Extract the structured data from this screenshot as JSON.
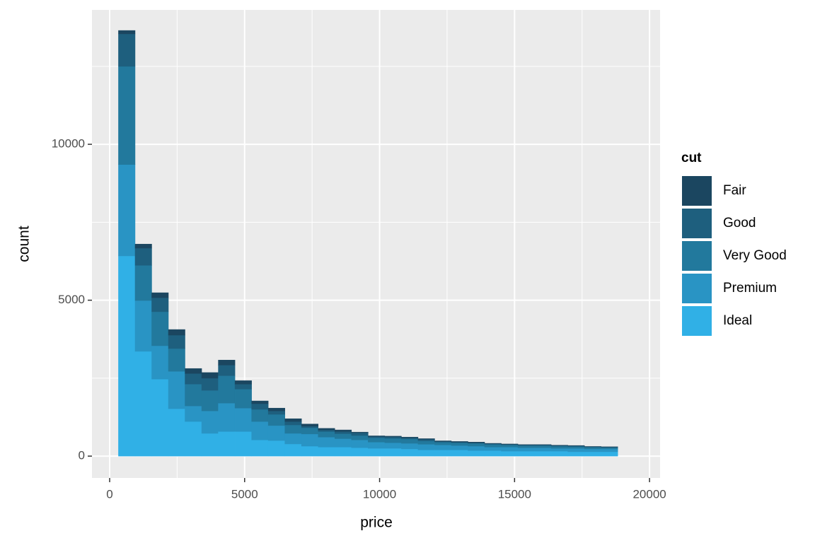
{
  "chart_data": {
    "type": "histogram",
    "stacked": true,
    "x_label": "price",
    "y_label": "count",
    "legend_title": "cut",
    "legend_position": "right",
    "grid": true,
    "bins": [
      326,
      943,
      1559,
      2176,
      2792,
      3409,
      4025,
      4642,
      5259,
      5875,
      6492,
      7108,
      7725,
      8341,
      8958,
      9575,
      10191,
      10808,
      11424,
      12041,
      12657,
      13274,
      13890,
      14507,
      15124,
      15740,
      16357,
      16973,
      17590,
      18206,
      18823
    ],
    "series": [
      {
        "name": "Fair",
        "color": "#1b4660",
        "values": [
          110,
          130,
          160,
          180,
          160,
          180,
          160,
          110,
          90,
          90,
          90,
          70,
          50,
          50,
          20,
          20,
          20,
          20,
          20,
          20,
          20,
          20,
          10,
          10,
          10,
          10,
          10,
          10,
          10,
          10
        ]
      },
      {
        "name": "Good",
        "color": "#1e5f7e",
        "values": [
          1040,
          550,
          450,
          430,
          340,
          390,
          340,
          160,
          180,
          110,
          110,
          50,
          50,
          70,
          90,
          40,
          50,
          40,
          50,
          20,
          20,
          20,
          20,
          20,
          20,
          20,
          20,
          20,
          10,
          10
        ]
      },
      {
        "name": "Very Good",
        "color": "#22799d",
        "values": [
          3150,
          1130,
          1090,
          730,
          700,
          660,
          880,
          610,
          390,
          360,
          270,
          200,
          180,
          160,
          140,
          140,
          140,
          140,
          110,
          90,
          90,
          90,
          90,
          70,
          70,
          70,
          70,
          60,
          60,
          50
        ]
      },
      {
        "name": "Premium",
        "color": "#2994c4",
        "values": [
          2930,
          1630,
          1070,
          1200,
          500,
          720,
          910,
          750,
          590,
          480,
          340,
          390,
          320,
          270,
          250,
          200,
          180,
          180,
          180,
          160,
          140,
          140,
          110,
          130,
          110,
          110,
          90,
          110,
          90,
          90
        ]
      },
      {
        "name": "Ideal",
        "color": "#30b0e6",
        "values": [
          6420,
          3360,
          2470,
          1520,
          1110,
          730,
          790,
          790,
          520,
          500,
          390,
          320,
          290,
          290,
          270,
          250,
          250,
          230,
          200,
          200,
          200,
          180,
          180,
          160,
          160,
          160,
          160,
          140,
          140,
          140
        ]
      }
    ],
    "xlim": [
      -655,
      20390
    ],
    "xticks": [
      0,
      5000,
      10000,
      15000,
      20000
    ],
    "ylim": [
      -700,
      14310
    ],
    "yticks": [
      0,
      5000,
      10000
    ]
  }
}
